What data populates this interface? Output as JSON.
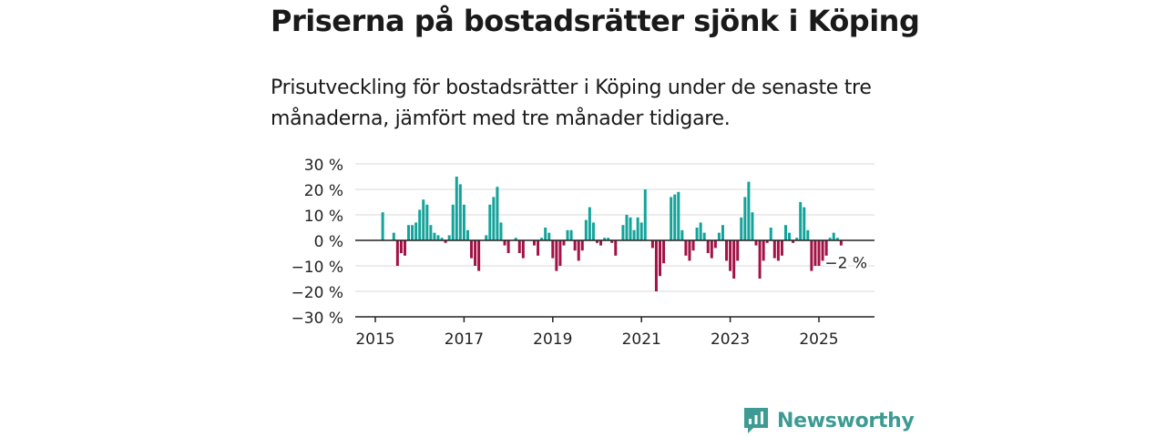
{
  "title": "Priserna på bostadsrätter sjönk i Köping",
  "subtitle": "Prisutveckling för bostadsrätter i Köping under de senaste tre månaderna, jämfört med tre månader tidigare.",
  "brand": {
    "name": "Newsworthy"
  },
  "colors": {
    "positive": "#14a39a",
    "negative": "#a31246",
    "grid": "#d9d9d9",
    "axis": "#222222",
    "brand": "#3d9b93"
  },
  "chart_data": {
    "type": "bar",
    "x_start": "2015-01",
    "x_ticks": [
      "2015",
      "2017",
      "2019",
      "2021",
      "2023",
      "2025"
    ],
    "y_ticks": [
      "30 %",
      "20 %",
      "10 %",
      "0 %",
      "−10 %",
      "−20 %",
      "−30 %"
    ],
    "ylim": [
      -30,
      30
    ],
    "grid": true,
    "annotation": {
      "text": "−2 %",
      "month": "2025-08",
      "value": -2
    },
    "values": [
      0,
      0,
      11,
      0,
      0,
      3,
      -10,
      -5,
      -6,
      6,
      6,
      7,
      12,
      16,
      14,
      6,
      3,
      2,
      1,
      -1,
      2,
      14,
      25,
      22,
      14,
      4,
      -7,
      -10,
      -12,
      0,
      2,
      14,
      17,
      21,
      7,
      -2,
      -5,
      0,
      1,
      -5,
      -7,
      0,
      0,
      -2,
      -6,
      1,
      5,
      3,
      -7,
      -12,
      -10,
      -2,
      4,
      4,
      -4,
      -8,
      -4,
      8,
      13,
      7,
      -1,
      -2,
      1,
      1,
      -1,
      -6,
      0,
      6,
      10,
      9,
      4,
      9,
      7,
      20,
      0,
      -3,
      -20,
      -14,
      -9,
      0,
      17,
      18,
      19,
      4,
      -6,
      -8,
      -4,
      5,
      7,
      3,
      -5,
      -7,
      -3,
      3,
      6,
      -8,
      -12,
      -15,
      -8,
      9,
      17,
      23,
      11,
      -2,
      -15,
      -8,
      -1,
      5,
      -7,
      -8,
      -6,
      6,
      3,
      -1,
      1,
      15,
      13,
      4,
      -12,
      -10,
      -10,
      -8,
      -6,
      1,
      3,
      1,
      -2
    ]
  }
}
